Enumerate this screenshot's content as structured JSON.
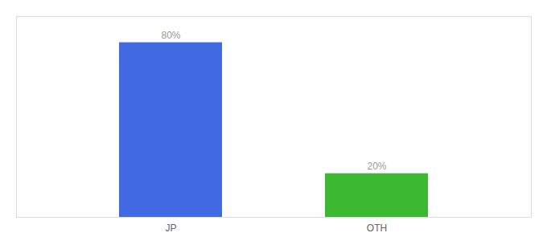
{
  "chart_data": {
    "type": "bar",
    "categories": [
      "JP",
      "OTH"
    ],
    "values": [
      80,
      20
    ],
    "value_labels": [
      "80%",
      "20%"
    ],
    "colors": [
      "#4169E1",
      "#3CB832"
    ],
    "ylim": [
      0,
      92
    ],
    "data_labels": true,
    "tick_labels": "x",
    "grid": false
  }
}
